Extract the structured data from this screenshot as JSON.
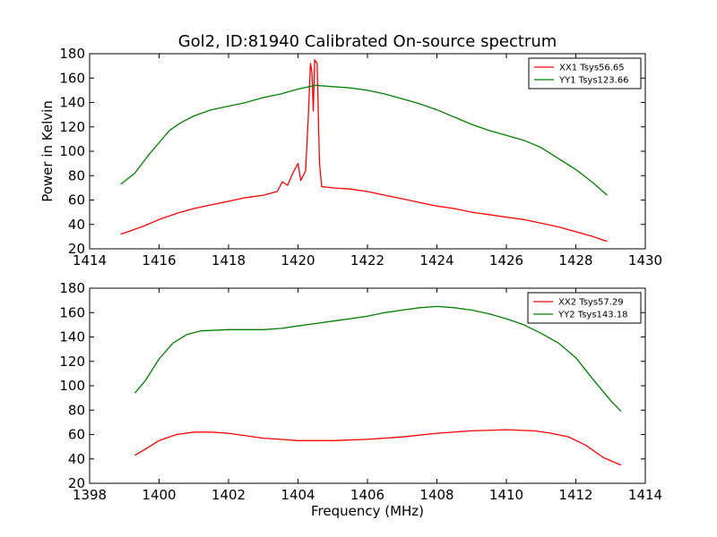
{
  "chart_data": [
    {
      "type": "line",
      "title": "Gol2, ID:81940 Calibrated On-source spectrum",
      "xlabel": "",
      "ylabel": "Power in Kelvin",
      "xlim": [
        1414,
        1430
      ],
      "ylim": [
        20,
        180
      ],
      "xticks": [
        1414,
        1416,
        1418,
        1420,
        1422,
        1424,
        1426,
        1428,
        1430
      ],
      "yticks": [
        20,
        40,
        60,
        80,
        100,
        120,
        140,
        160,
        180
      ],
      "legend_position": "top-right",
      "grid": false,
      "series": [
        {
          "name": "XX1 Tsys56.65",
          "color": "#ff0000",
          "points": [
            [
              1414.9,
              32
            ],
            [
              1415.5,
              38
            ],
            [
              1416,
              44
            ],
            [
              1416.5,
              49
            ],
            [
              1417,
              53
            ],
            [
              1417.5,
              56
            ],
            [
              1418,
              59
            ],
            [
              1418.5,
              62
            ],
            [
              1419,
              64
            ],
            [
              1419.4,
              67
            ],
            [
              1419.55,
              75
            ],
            [
              1419.7,
              72
            ],
            [
              1419.85,
              82
            ],
            [
              1420.0,
              90
            ],
            [
              1420.08,
              76
            ],
            [
              1420.15,
              80
            ],
            [
              1420.22,
              84
            ],
            [
              1420.3,
              130
            ],
            [
              1420.36,
              172
            ],
            [
              1420.4,
              165
            ],
            [
              1420.44,
              133
            ],
            [
              1420.48,
              175
            ],
            [
              1420.55,
              172
            ],
            [
              1420.62,
              90
            ],
            [
              1420.68,
              71
            ],
            [
              1421,
              70
            ],
            [
              1421.5,
              69
            ],
            [
              1422,
              67
            ],
            [
              1422.5,
              64
            ],
            [
              1423,
              61
            ],
            [
              1423.5,
              58
            ],
            [
              1424,
              55
            ],
            [
              1424.5,
              53
            ],
            [
              1425,
              50
            ],
            [
              1425.5,
              48
            ],
            [
              1426,
              46
            ],
            [
              1426.5,
              44
            ],
            [
              1427,
              41
            ],
            [
              1427.5,
              38
            ],
            [
              1428,
              34
            ],
            [
              1428.5,
              30
            ],
            [
              1428.9,
              26
            ]
          ]
        },
        {
          "name": "YY1 Tsys123.66",
          "color": "#008000",
          "points": [
            [
              1414.9,
              73
            ],
            [
              1415.3,
              82
            ],
            [
              1415.7,
              97
            ],
            [
              1416,
              107
            ],
            [
              1416.3,
              117
            ],
            [
              1416.6,
              123
            ],
            [
              1417,
              129
            ],
            [
              1417.5,
              134
            ],
            [
              1418,
              137
            ],
            [
              1418.5,
              140
            ],
            [
              1419,
              144
            ],
            [
              1419.5,
              147
            ],
            [
              1420,
              151
            ],
            [
              1420.5,
              154
            ],
            [
              1421,
              153
            ],
            [
              1421.5,
              152
            ],
            [
              1422,
              150
            ],
            [
              1422.5,
              147
            ],
            [
              1423,
              143
            ],
            [
              1423.5,
              139
            ],
            [
              1424,
              134
            ],
            [
              1424.5,
              128
            ],
            [
              1425,
              122
            ],
            [
              1425.5,
              117
            ],
            [
              1426,
              113
            ],
            [
              1426.5,
              109
            ],
            [
              1427,
              103
            ],
            [
              1427.5,
              94
            ],
            [
              1428,
              85
            ],
            [
              1428.5,
              74
            ],
            [
              1428.9,
              64
            ]
          ]
        }
      ]
    },
    {
      "type": "line",
      "title": "",
      "xlabel": "Frequency (MHz)",
      "ylabel": "",
      "xlim": [
        1398,
        1414
      ],
      "ylim": [
        20,
        180
      ],
      "xticks": [
        1398,
        1400,
        1402,
        1404,
        1406,
        1408,
        1410,
        1412,
        1414
      ],
      "yticks": [
        20,
        40,
        60,
        80,
        100,
        120,
        140,
        160,
        180
      ],
      "legend_position": "top-right",
      "grid": false,
      "series": [
        {
          "name": "XX2 Tsys57.29",
          "color": "#ff0000",
          "points": [
            [
              1399.3,
              43
            ],
            [
              1399.6,
              48
            ],
            [
              1400,
              55
            ],
            [
              1400.5,
              60
            ],
            [
              1401,
              62
            ],
            [
              1401.5,
              62
            ],
            [
              1402,
              61
            ],
            [
              1402.5,
              59
            ],
            [
              1403,
              57
            ],
            [
              1403.5,
              56
            ],
            [
              1404,
              55
            ],
            [
              1405,
              55
            ],
            [
              1406,
              56
            ],
            [
              1407,
              58
            ],
            [
              1408,
              61
            ],
            [
              1409,
              63
            ],
            [
              1410,
              64
            ],
            [
              1410.8,
              63
            ],
            [
              1411.3,
              61
            ],
            [
              1411.8,
              58
            ],
            [
              1412.3,
              51
            ],
            [
              1412.8,
              41
            ],
            [
              1413.3,
              35
            ]
          ]
        },
        {
          "name": "YY2 Tsys143.18",
          "color": "#008000",
          "points": [
            [
              1399.3,
              94
            ],
            [
              1399.6,
              104
            ],
            [
              1400,
              122
            ],
            [
              1400.4,
              135
            ],
            [
              1400.8,
              142
            ],
            [
              1401.2,
              145
            ],
            [
              1402,
              146
            ],
            [
              1402.5,
              146
            ],
            [
              1403,
              146
            ],
            [
              1403.5,
              147
            ],
            [
              1404,
              149
            ],
            [
              1404.5,
              151
            ],
            [
              1405,
              153
            ],
            [
              1405.5,
              155
            ],
            [
              1406,
              157
            ],
            [
              1406.5,
              160
            ],
            [
              1407,
              162
            ],
            [
              1407.5,
              164
            ],
            [
              1408,
              165
            ],
            [
              1408.5,
              164
            ],
            [
              1409,
              162
            ],
            [
              1409.5,
              159
            ],
            [
              1410,
              155
            ],
            [
              1410.5,
              150
            ],
            [
              1411,
              143
            ],
            [
              1411.5,
              135
            ],
            [
              1412,
              123
            ],
            [
              1412.5,
              105
            ],
            [
              1413,
              88
            ],
            [
              1413.3,
              79
            ]
          ]
        }
      ]
    }
  ]
}
